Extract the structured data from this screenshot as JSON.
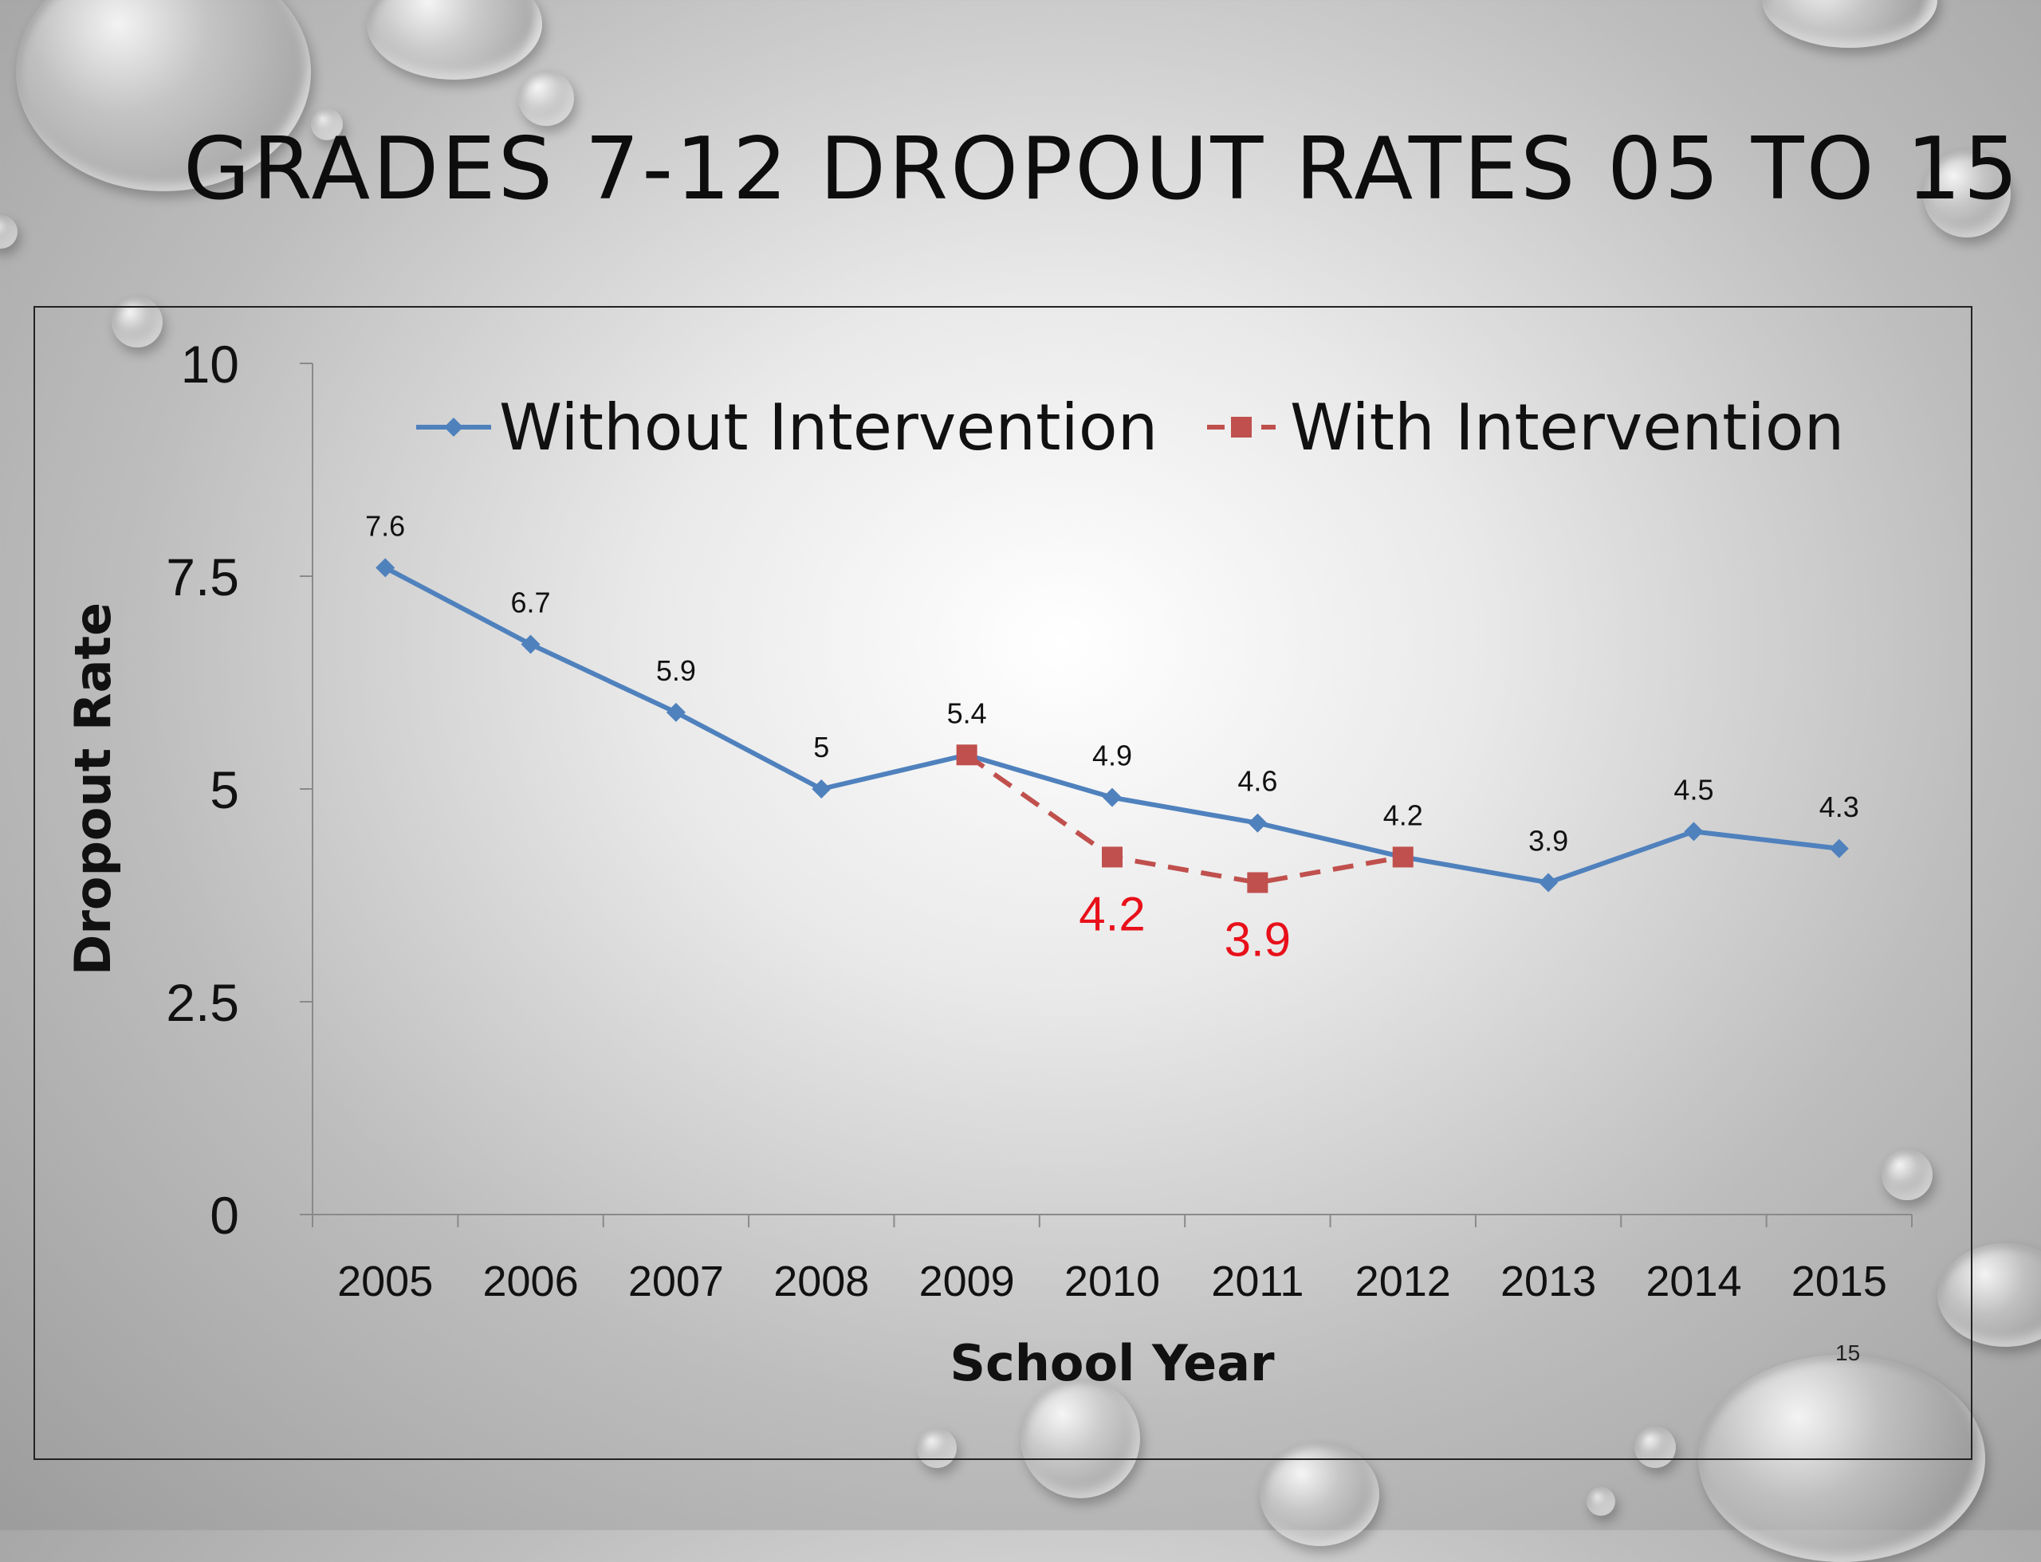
{
  "slide": {
    "title": "GRADES 7-12 DROPOUT RATES 05 TO 15",
    "page_number": "15"
  },
  "chart_data": {
    "type": "line",
    "title": "",
    "xlabel": "School Year",
    "ylabel": "Dropout Rate",
    "ylim": [
      0,
      10
    ],
    "yticks": [
      "0",
      "2.5",
      "5",
      "7.5",
      "10"
    ],
    "x": [
      "2005",
      "2006",
      "2007",
      "2008",
      "2009",
      "2010",
      "2011",
      "2012",
      "2013",
      "2014",
      "2015"
    ],
    "legend_position": "top",
    "grid": false,
    "series": [
      {
        "name": "Without Intervention",
        "color": "#4f81bd",
        "marker": "diamond",
        "dash": "solid",
        "values": [
          7.6,
          6.7,
          5.9,
          5,
          5.4,
          4.9,
          4.6,
          4.2,
          3.9,
          4.5,
          4.3
        ],
        "labels": [
          "7.6",
          "6.7",
          "5.9",
          "5",
          "5.4",
          "4.9",
          "4.6",
          "4.2",
          "3.9",
          "4.5",
          "4.3"
        ]
      },
      {
        "name": "With Intervention",
        "color": "#c0504d",
        "label_color": "#e8101a",
        "marker": "square",
        "dash": "dashed",
        "x": [
          "2009",
          "2010",
          "2011",
          "2012"
        ],
        "values": [
          5.4,
          4.2,
          3.9,
          4.2
        ],
        "labels": [
          "4.2",
          "3.9"
        ],
        "label_x": [
          "2010",
          "2011"
        ]
      }
    ]
  }
}
